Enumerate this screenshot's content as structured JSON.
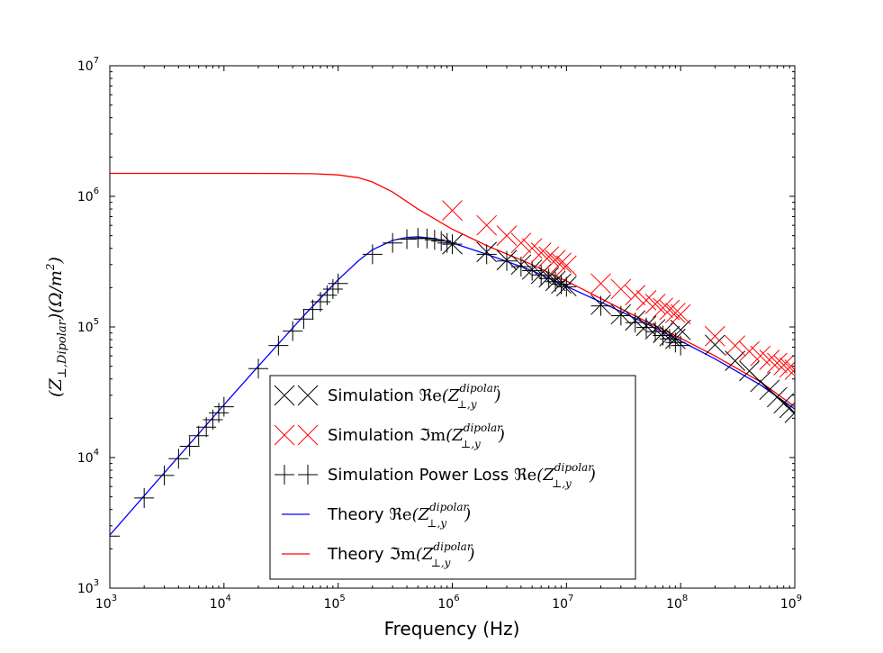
{
  "chart_data": {
    "type": "scatter",
    "xlabel": "Frequency (Hz)",
    "ylabel": "(Z⊥,Dipolar)(Ω/m²)",
    "x_scale": "log",
    "y_scale": "log",
    "xlim": [
      1000,
      1000000000
    ],
    "ylim": [
      1000,
      10000000
    ],
    "x_ticks": [
      {
        "base": "10",
        "exp": "3"
      },
      {
        "base": "10",
        "exp": "4"
      },
      {
        "base": "10",
        "exp": "5"
      },
      {
        "base": "10",
        "exp": "6"
      },
      {
        "base": "10",
        "exp": "7"
      },
      {
        "base": "10",
        "exp": "8"
      },
      {
        "base": "10",
        "exp": "9"
      }
    ],
    "y_ticks": [
      {
        "base": "10",
        "exp": "3"
      },
      {
        "base": "10",
        "exp": "4"
      },
      {
        "base": "10",
        "exp": "5"
      },
      {
        "base": "10",
        "exp": "6"
      },
      {
        "base": "10",
        "exp": "7"
      }
    ],
    "grid": false,
    "legend_position": "lower-center",
    "series": [
      {
        "name": "Simulation ℜe(Z⊥,y^dipolar)",
        "kind": "marker-x",
        "color": "#000000",
        "x": [
          1000000,
          2000000,
          3000000,
          4000000,
          5000000,
          6000000,
          7000000,
          8000000,
          9000000,
          10000000,
          20000000,
          30000000,
          40000000,
          50000000,
          60000000,
          70000000,
          80000000,
          90000000,
          100000000,
          200000000,
          300000000,
          400000000,
          500000000,
          600000000,
          700000000,
          800000000,
          900000000,
          1000000000
        ],
        "y": [
          430000,
          375000,
          325000,
          300000,
          275000,
          255000,
          240000,
          225000,
          215000,
          205000,
          148000,
          125000,
          112000,
          102000,
          96000,
          90000,
          85000,
          81000,
          95000,
          73000,
          55000,
          46000,
          38000,
          33000,
          29000,
          26000,
          24000,
          22000
        ]
      },
      {
        "name": "Simulation ℑm(Z⊥,y^dipolar)",
        "kind": "marker-x",
        "color": "#ff0000",
        "x": [
          1000000,
          2000000,
          3000000,
          4000000,
          5000000,
          6000000,
          7000000,
          8000000,
          9000000,
          10000000,
          20000000,
          30000000,
          40000000,
          50000000,
          60000000,
          70000000,
          80000000,
          90000000,
          100000000,
          200000000,
          300000000,
          400000000,
          500000000,
          600000000,
          700000000,
          800000000,
          900000000,
          1000000000
        ],
        "y": [
          780000,
          600000,
          500000,
          440000,
          400000,
          370000,
          345000,
          325000,
          310000,
          295000,
          215000,
          195000,
          175000,
          160000,
          150000,
          140000,
          135000,
          128000,
          125000,
          85000,
          72000,
          65000,
          60000,
          56000,
          53000,
          51000,
          49000,
          47000
        ]
      },
      {
        "name": "Simulation Power Loss ℜe(Z⊥,y^dipolar)",
        "kind": "marker-plus",
        "color": "#000000",
        "x": [
          1000,
          2000,
          3000,
          4000,
          5000,
          6000,
          7000,
          8000,
          9000,
          10000,
          20000,
          30000,
          40000,
          50000,
          60000,
          70000,
          80000,
          90000,
          100000,
          200000,
          300000,
          400000,
          500000,
          600000,
          700000,
          800000,
          900000,
          1000000,
          2000000,
          3000000,
          4000000,
          5000000,
          6000000,
          7000000,
          8000000,
          9000000,
          10000000,
          20000000,
          30000000,
          40000000,
          50000000,
          60000000,
          70000000,
          80000000,
          90000000,
          100000000
        ],
        "y": [
          2500,
          4900,
          7300,
          9800,
          12200,
          14700,
          17100,
          19500,
          22000,
          24500,
          48000,
          72000,
          93000,
          115000,
          136000,
          156000,
          175000,
          195000,
          215000,
          360000,
          440000,
          470000,
          480000,
          475000,
          465000,
          455000,
          440000,
          430000,
          360000,
          320000,
          290000,
          270000,
          250000,
          235000,
          222000,
          212000,
          203000,
          145000,
          122000,
          108000,
          99000,
          92000,
          86000,
          81000,
          76000,
          72000
        ]
      },
      {
        "name": "Theory ℜe(Z⊥,y^dipolar)",
        "kind": "line",
        "color": "#0000ff",
        "x": [
          1000,
          2000,
          5000,
          10000,
          20000,
          50000,
          100000,
          150000,
          200000,
          300000,
          400000,
          500000,
          700000,
          1000000,
          2000000,
          5000000,
          10000000,
          20000000,
          50000000,
          100000000,
          200000000,
          500000000,
          1000000000
        ],
        "y": [
          2550,
          5100,
          12700,
          25300,
          50000,
          122000,
          230000,
          320000,
          390000,
          460000,
          485000,
          490000,
          475000,
          440000,
          360000,
          270000,
          205000,
          155000,
          106000,
          78000,
          57000,
          36000,
          23500
        ]
      },
      {
        "name": "Theory ℑm(Z⊥,y^dipolar)",
        "kind": "line",
        "color": "#ff0000",
        "x": [
          1000,
          10000,
          30000,
          60000,
          100000,
          150000,
          200000,
          300000,
          500000,
          1000000,
          2000000,
          5000000,
          10000000,
          20000000,
          50000000,
          100000000,
          200000000,
          500000000,
          1000000000
        ],
        "y": [
          1500000,
          1500000,
          1498000,
          1490000,
          1460000,
          1390000,
          1290000,
          1080000,
          800000,
          560000,
          420000,
          300000,
          225000,
          165000,
          110000,
          82000,
          60000,
          38000,
          24500
        ]
      }
    ]
  },
  "legend": {
    "items": [
      {
        "prefix": "Simulation ",
        "op": "ℜe",
        "kind": "marker-x",
        "color": "#000000"
      },
      {
        "prefix": "Simulation ",
        "op": "ℑm",
        "kind": "marker-x",
        "color": "#ff0000"
      },
      {
        "prefix": "Simulation Power Loss ",
        "op": "ℜe",
        "kind": "marker-plus",
        "color": "#000000"
      },
      {
        "prefix": "Theory ",
        "op": "ℜe",
        "kind": "line",
        "color": "#0000ff"
      },
      {
        "prefix": "Theory ",
        "op": "ℑm",
        "kind": "line",
        "color": "#ff0000"
      }
    ],
    "z_symbol": "Z",
    "z_sub": "⊥,y",
    "z_sup": "dipolar"
  }
}
